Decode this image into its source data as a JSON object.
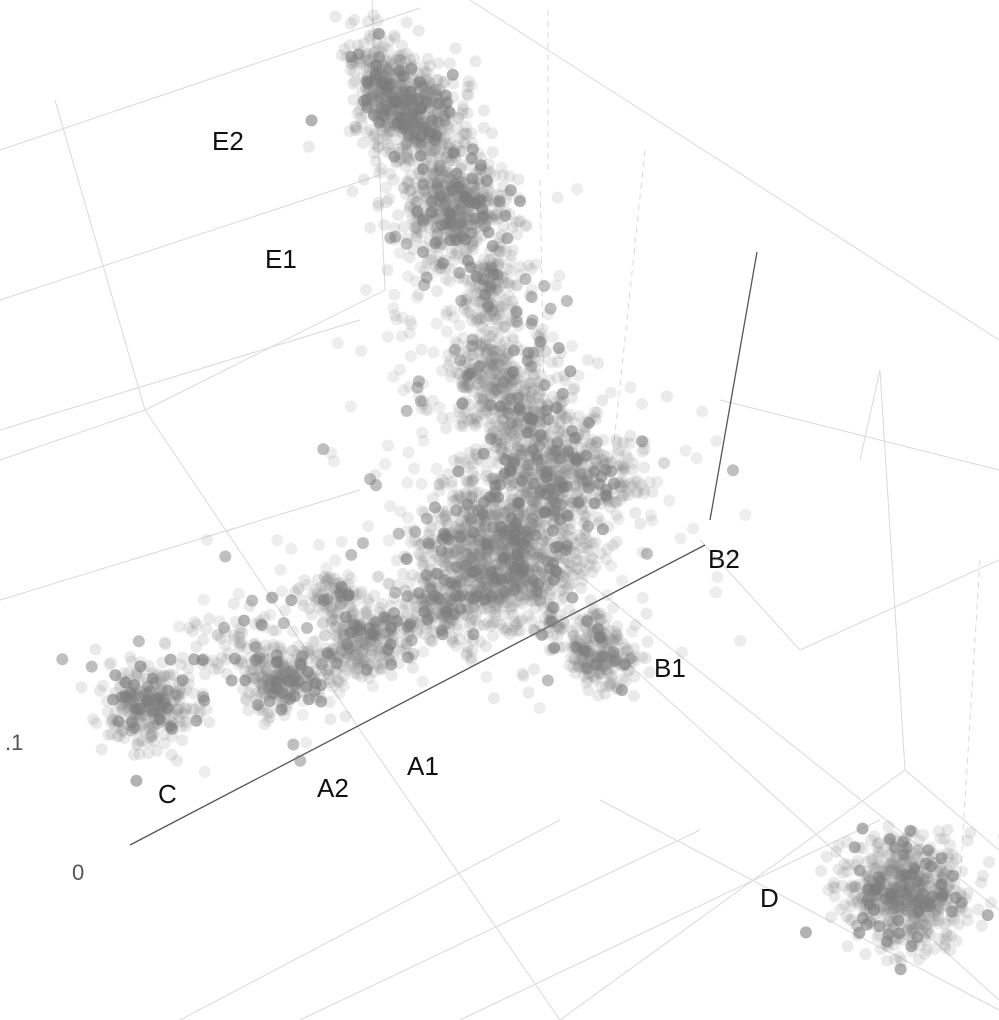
{
  "chart_data": {
    "type": "scatter",
    "projection": "3d",
    "point_color": "#7f7f7f",
    "point_opacity": "low",
    "grid": true,
    "legend": "none",
    "tick_labels": [
      "0",
      ".1"
    ],
    "clusters": [
      {
        "label": "E2",
        "density": "high",
        "spread": "elongated"
      },
      {
        "label": "E1",
        "density": "high",
        "spread": "elongated"
      },
      {
        "label": "B2",
        "density": "high",
        "spread": "large"
      },
      {
        "label": "B1",
        "density": "medium",
        "spread": "compact"
      },
      {
        "label": "A1",
        "density": "medium",
        "spread": "compact"
      },
      {
        "label": "A2",
        "density": "medium",
        "spread": "compact"
      },
      {
        "label": "C",
        "density": "medium",
        "spread": "compact"
      },
      {
        "label": "D",
        "density": "high",
        "spread": "compact"
      }
    ]
  }
}
